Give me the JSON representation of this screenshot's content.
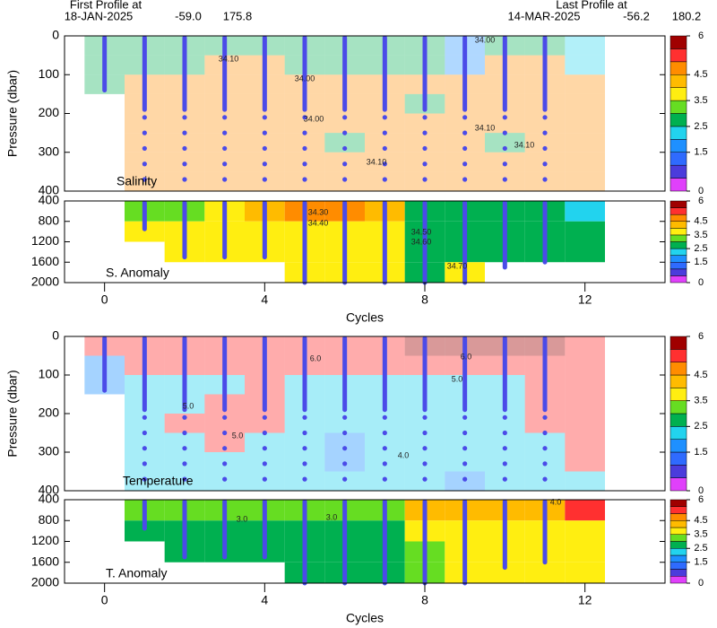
{
  "header": {
    "first": {
      "caption": "First Profile at",
      "date": "18-JAN-2025",
      "lat": "-59.0",
      "lon": "175.8"
    },
    "last": {
      "caption": "Last Profile at",
      "date": "14-MAR-2025",
      "lat": "-56.2",
      "lon": "180.2"
    }
  },
  "colorbar": {
    "levels": [
      0,
      0.5,
      1,
      1.5,
      2,
      2.5,
      3,
      3.5,
      4,
      4.5,
      5,
      5.5,
      6
    ],
    "colors": [
      "#e040fb",
      "#4b3cdc",
      "#2f6bff",
      "#1e90ff",
      "#22d3ee",
      "#00b050",
      "#66dd22",
      "#ffee11",
      "#ffbb00",
      "#ff8c00",
      "#ff3030",
      "#a00000"
    ],
    "ticks": [
      0,
      1.5,
      2.5,
      3.5,
      4.5,
      6
    ]
  },
  "chart_data": [
    {
      "type": "heatmap",
      "label": "Salinity",
      "ylabel": "Pressure (dbar)",
      "xlim": [
        -1,
        14
      ],
      "ylim": [
        0,
        400
      ],
      "y_inverted": true,
      "yticks": [
        0,
        100,
        200,
        300,
        400
      ],
      "x": [
        0,
        1,
        2,
        3,
        4,
        5,
        6,
        7,
        8,
        9,
        10,
        11,
        12
      ],
      "y_bins": [
        0,
        50,
        100,
        150,
        200,
        250,
        300,
        350,
        400
      ],
      "values": [
        [
          2.5,
          2.5,
          2.5,
          2.5,
          2.5,
          2.5,
          2.5,
          2.5,
          2.5,
          1.5,
          2.5,
          2.5,
          2
        ],
        [
          2.5,
          2.5,
          2.5,
          4.5,
          4.5,
          2.5,
          2.5,
          2.5,
          2.5,
          1.5,
          4.5,
          4.5,
          2
        ],
        [
          2.5,
          4.5,
          4.5,
          4.5,
          4.5,
          4.5,
          4.5,
          4.5,
          4.5,
          4.5,
          4.5,
          4.5,
          4.5
        ],
        [
          null,
          4.5,
          4.5,
          4.5,
          4.5,
          4.5,
          4.5,
          4.5,
          2.5,
          4.5,
          4.5,
          4.5,
          4.5
        ],
        [
          null,
          4.5,
          4.5,
          4.5,
          4.5,
          4.5,
          4.5,
          4.5,
          4.5,
          4.5,
          4.5,
          4.5,
          4.5
        ],
        [
          null,
          4.5,
          4.5,
          4.5,
          4.5,
          4.5,
          2.5,
          4.5,
          4.5,
          4.5,
          2.5,
          4.5,
          4.5
        ],
        [
          null,
          4.5,
          4.5,
          4.5,
          4.5,
          4.5,
          4.5,
          4.5,
          4.5,
          4.5,
          4.5,
          4.5,
          4.5
        ],
        [
          null,
          4.5,
          4.5,
          4.5,
          4.5,
          4.5,
          4.5,
          4.5,
          4.5,
          4.5,
          4.5,
          4.5,
          4.5
        ]
      ],
      "profiles": {
        "x": [
          0,
          1,
          2,
          3,
          4,
          5,
          6,
          7,
          8,
          9,
          10,
          11
        ],
        "depth": [
          140,
          190,
          190,
          190,
          190,
          190,
          190,
          190,
          190,
          190,
          190,
          190
        ]
      },
      "sample_pressures": [
        210,
        250,
        290,
        330,
        370
      ],
      "contours": [
        {
          "value": 34.1,
          "label": "34.10"
        },
        {
          "value": 34,
          "label": "34.00"
        },
        {
          "value": 34,
          "label": "34.00"
        },
        {
          "value": 34.1,
          "label": "34.10"
        },
        {
          "value": 34,
          "label": "34.00"
        },
        {
          "value": 34.1,
          "label": "34.10"
        },
        {
          "value": 34.1,
          "label": "34.10"
        }
      ]
    },
    {
      "type": "heatmap",
      "label": "S. Anomaly",
      "xlabel": "Cycles",
      "xlim": [
        -1,
        14
      ],
      "xticks": [
        0,
        4,
        8,
        12
      ],
      "ylim": [
        400,
        2000
      ],
      "y_inverted": true,
      "yticks": [
        400,
        800,
        1200,
        1600,
        2000
      ],
      "x": [
        0,
        1,
        2,
        3,
        4,
        5,
        6,
        7,
        8,
        9,
        10,
        11,
        12
      ],
      "y_bins": [
        400,
        800,
        1200,
        1600,
        2000
      ],
      "values": [
        [
          null,
          3,
          3,
          3.5,
          4,
          4.5,
          4.5,
          4,
          2.5,
          2.5,
          2.5,
          2.5,
          2
        ],
        [
          null,
          3.5,
          3.5,
          3.5,
          3.5,
          3.5,
          3.5,
          3.5,
          2.5,
          2.5,
          2.5,
          2.5,
          2.5
        ],
        [
          null,
          null,
          3.5,
          3.5,
          3.5,
          3.5,
          3.5,
          3.5,
          2.5,
          2.5,
          2.5,
          2.5,
          2.5
        ],
        [
          null,
          null,
          null,
          null,
          null,
          3.5,
          3.5,
          3.5,
          2.5,
          3.5,
          null,
          null,
          null
        ]
      ],
      "profiles": {
        "x": [
          1,
          2,
          3,
          4,
          5,
          6,
          7,
          8,
          9,
          10,
          11
        ],
        "depth": [
          950,
          1500,
          1500,
          1500,
          2000,
          2000,
          2000,
          2000,
          2000,
          1700,
          1600
        ]
      },
      "contours": [
        {
          "value": 34.3,
          "label": "34.30"
        },
        {
          "value": 34.4,
          "label": "34.40"
        },
        {
          "value": 34.5,
          "label": "34.50"
        },
        {
          "value": 34.6,
          "label": "34.60"
        },
        {
          "value": 34.7,
          "label": "34.70"
        }
      ]
    },
    {
      "type": "heatmap",
      "label": "Temperature",
      "ylabel": "Pressure (dbar)",
      "xlim": [
        -1,
        14
      ],
      "ylim": [
        0,
        400
      ],
      "y_inverted": true,
      "yticks": [
        0,
        100,
        200,
        300,
        400
      ],
      "x": [
        0,
        1,
        2,
        3,
        4,
        5,
        6,
        7,
        8,
        9,
        10,
        11,
        12
      ],
      "y_bins": [
        0,
        50,
        100,
        150,
        200,
        250,
        300,
        350,
        400
      ],
      "values": [
        [
          5,
          5,
          5,
          5,
          5,
          5,
          5,
          5,
          5.5,
          5.5,
          5.5,
          5.5,
          5
        ],
        [
          1.5,
          5,
          5,
          5,
          5,
          5,
          5,
          5,
          5,
          5,
          5,
          5,
          5
        ],
        [
          1.5,
          2,
          2,
          2,
          5,
          2,
          2,
          2,
          2,
          2,
          2,
          5,
          5
        ],
        [
          null,
          2,
          2,
          5,
          5,
          2,
          2,
          2,
          2,
          2,
          2,
          5,
          5
        ],
        [
          null,
          2,
          5,
          5,
          5,
          2,
          2,
          2,
          2,
          2,
          2,
          5,
          5
        ],
        [
          null,
          2,
          2,
          5,
          2,
          2,
          1.5,
          2,
          2,
          2,
          2,
          2,
          5
        ],
        [
          null,
          2,
          2,
          2,
          2,
          2,
          1.5,
          2,
          2,
          2,
          2,
          2,
          5
        ],
        [
          null,
          2,
          2,
          2,
          2,
          2,
          2,
          2,
          2,
          1.5,
          2,
          2,
          2
        ]
      ],
      "profiles": {
        "x": [
          0,
          1,
          2,
          3,
          4,
          5,
          6,
          7,
          8,
          9,
          10,
          11
        ],
        "depth": [
          140,
          190,
          190,
          190,
          190,
          190,
          190,
          190,
          190,
          190,
          190,
          190
        ]
      },
      "sample_pressures": [
        210,
        250,
        290,
        330,
        370
      ],
      "contours": [
        {
          "value": 6,
          "label": "6.0"
        },
        {
          "value": 5,
          "label": "5.0"
        },
        {
          "value": 6,
          "label": "6.0"
        },
        {
          "value": 5,
          "label": "5.0"
        },
        {
          "value": 5,
          "label": "5.0"
        },
        {
          "value": 4,
          "label": "4.0"
        }
      ]
    },
    {
      "type": "heatmap",
      "label": "T. Anomaly",
      "xlabel": "Cycles",
      "xlim": [
        -1,
        14
      ],
      "xticks": [
        0,
        4,
        8,
        12
      ],
      "ylim": [
        400,
        2000
      ],
      "y_inverted": true,
      "yticks": [
        400,
        800,
        1200,
        1600,
        2000
      ],
      "x": [
        0,
        1,
        2,
        3,
        4,
        5,
        6,
        7,
        8,
        9,
        10,
        11,
        12
      ],
      "y_bins": [
        400,
        800,
        1200,
        1600,
        2000
      ],
      "values": [
        [
          null,
          3,
          3,
          3,
          3,
          3,
          3,
          3,
          4,
          4,
          4,
          4,
          5
        ],
        [
          null,
          2.5,
          2.5,
          2.5,
          2.5,
          2.5,
          2.5,
          2.5,
          3.5,
          3.5,
          3.5,
          3.5,
          3.5
        ],
        [
          null,
          null,
          2.5,
          2.5,
          2.5,
          2.5,
          2.5,
          2.5,
          3,
          3.5,
          3.5,
          3.5,
          3.5
        ],
        [
          null,
          null,
          null,
          null,
          null,
          2.5,
          2.5,
          2.5,
          3,
          3.5,
          3.5,
          3.5,
          3.5
        ]
      ],
      "profiles": {
        "x": [
          1,
          2,
          3,
          4,
          5,
          6,
          7,
          8,
          9,
          10,
          11
        ],
        "depth": [
          950,
          1500,
          1500,
          1500,
          2000,
          2000,
          2000,
          2000,
          2000,
          1700,
          1600
        ]
      },
      "contours": [
        {
          "value": 3,
          "label": "3.0"
        },
        {
          "value": 3,
          "label": "3.0"
        },
        {
          "value": 4,
          "label": "4.0"
        }
      ]
    }
  ]
}
